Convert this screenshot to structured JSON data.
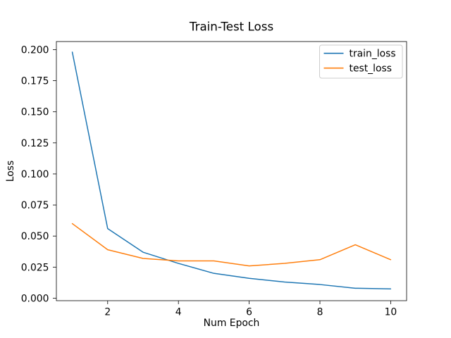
{
  "chart_data": {
    "type": "line",
    "title": "Train-Test Loss",
    "xlabel": "Num Epoch",
    "ylabel": "Loss",
    "x": [
      1,
      2,
      3,
      4,
      5,
      6,
      7,
      8,
      9,
      10
    ],
    "series": [
      {
        "name": "train_loss",
        "color": "#1f77b4",
        "values": [
          0.198,
          0.056,
          0.037,
          0.028,
          0.02,
          0.016,
          0.013,
          0.011,
          0.008,
          0.0075
        ]
      },
      {
        "name": "test_loss",
        "color": "#ff7f0e",
        "values": [
          0.06,
          0.039,
          0.032,
          0.03,
          0.03,
          0.026,
          0.028,
          0.031,
          0.043,
          0.031
        ]
      }
    ],
    "xlim": [
      0.55,
      10.45
    ],
    "ylim": [
      -0.002,
      0.2065
    ],
    "xticks": [
      2,
      4,
      6,
      8,
      10
    ],
    "xtick_labels": [
      "2",
      "4",
      "6",
      "8",
      "10"
    ],
    "yticks": [
      0.0,
      0.025,
      0.05,
      0.075,
      0.1,
      0.125,
      0.15,
      0.175,
      0.2
    ],
    "ytick_labels": [
      "0.000",
      "0.025",
      "0.050",
      "0.075",
      "0.100",
      "0.125",
      "0.150",
      "0.175",
      "0.200"
    ],
    "grid": false,
    "legend": {
      "position": "upper right",
      "entries": [
        "train_loss",
        "test_loss"
      ]
    },
    "colors": {
      "spine": "#000000",
      "tick": "#000000",
      "legend_border": "#cccccc",
      "background": "#ffffff"
    }
  }
}
